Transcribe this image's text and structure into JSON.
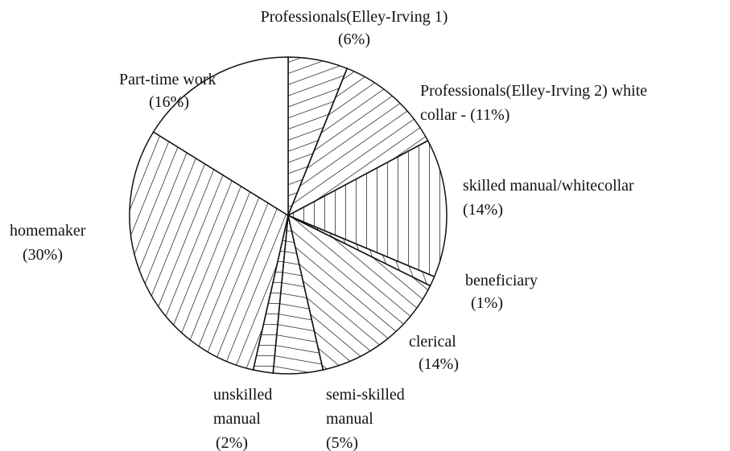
{
  "chart_data": {
    "type": "pie",
    "categories": [
      "Professionals(Elley-Irving 1)",
      "Professionals(Elley-Irving 2) white collar -",
      "skilled manual/whitecollar",
      "beneficiary",
      "clerical",
      "semi-skilled manual",
      "unskilled manual",
      "homemaker",
      "Part-time work"
    ],
    "values": [
      6,
      11,
      14,
      1,
      14,
      5,
      2,
      30,
      16
    ],
    "value_labels": [
      "(6%)",
      "(11%)",
      "(14%)",
      "(1%)",
      "(14%)",
      "(5%)",
      "(2%)",
      "(30%)",
      "(16%)"
    ]
  }
}
